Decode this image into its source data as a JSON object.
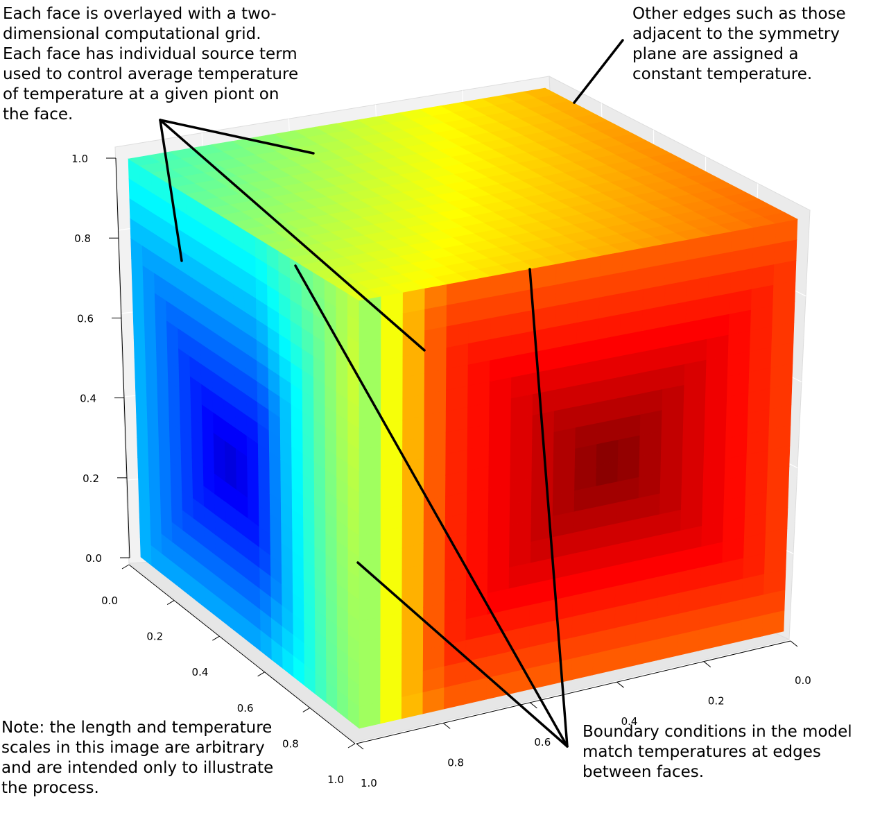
{
  "annotations": {
    "top_left": "Each face is overlayed with a two-\ndimensional computational grid.\nEach face has individual source term\nused to control average temperature\nof temperature at a given piont on\nthe face.",
    "top_right": "Other edges such as those\nadjacent to the symmetry\nplane are assigned a\nconstant temperature.",
    "bottom_left": "Note: the length and temperature\nscales in this image are arbitrary\nand are intended only to illustrate\nthe process.",
    "bottom_right": "Boundary conditions in the model\nmatch temperatures at edges\nbetween faces."
  },
  "axes": {
    "vertical_ticks": [
      "0.0",
      "0.2",
      "0.4",
      "0.6",
      "0.8",
      "1.0"
    ],
    "left_ticks": [
      "0.0",
      "0.2",
      "0.4",
      "0.6",
      "0.8",
      "1.0"
    ],
    "right_ticks": [
      "0.0",
      "0.2",
      "0.4",
      "0.6",
      "0.8",
      "1.0"
    ]
  },
  "colormap": "jet",
  "grid_cells": 20
}
